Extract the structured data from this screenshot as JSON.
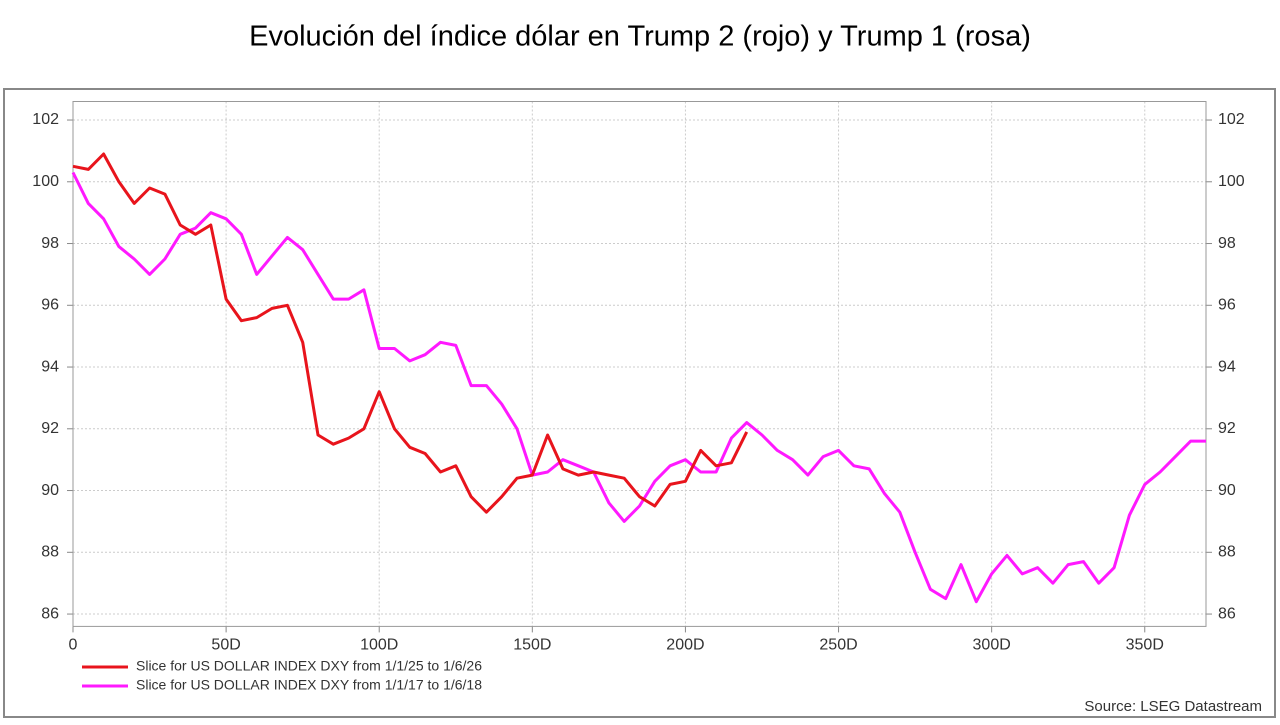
{
  "chart_data": {
    "type": "line",
    "title": "Evolución del índice dólar en Trump 2 (rojo) y Trump 1 (rosa)",
    "source": "Source: LSEG Datastream",
    "x": [
      0,
      5,
      10,
      15,
      20,
      25,
      30,
      35,
      40,
      45,
      50,
      55,
      60,
      65,
      70,
      75,
      80,
      85,
      90,
      95,
      100,
      105,
      110,
      115,
      120,
      125,
      130,
      135,
      140,
      145,
      150,
      155,
      160,
      165,
      170,
      175,
      180,
      185,
      190,
      195,
      200,
      205,
      210,
      215,
      220,
      225,
      230,
      235,
      240,
      245,
      250,
      255,
      260,
      265,
      270,
      275,
      280,
      285,
      290,
      295,
      300,
      305,
      310,
      315,
      320,
      325,
      330,
      335,
      340,
      345,
      350,
      355,
      360,
      365,
      370
    ],
    "series": [
      {
        "name": "Slice for US DOLLAR INDEX DXY from 1/1/25 to 1/6/26",
        "color": "#e8141c",
        "values": [
          100.5,
          100.4,
          100.9,
          100.0,
          99.3,
          99.8,
          99.6,
          98.6,
          98.3,
          98.6,
          96.2,
          95.5,
          95.6,
          95.9,
          96.0,
          94.8,
          91.8,
          91.5,
          91.7,
          92.0,
          93.2,
          92.0,
          91.4,
          91.2,
          90.6,
          90.8,
          89.8,
          89.3,
          89.8,
          90.4,
          90.5,
          91.8,
          90.7,
          90.5,
          90.6,
          90.5,
          90.4,
          89.8,
          89.5,
          90.2,
          90.3,
          91.3,
          90.8,
          90.9,
          91.9,
          null,
          null,
          null,
          null,
          null,
          null,
          null,
          null,
          null,
          null,
          null,
          null,
          null,
          null,
          null,
          null,
          null,
          null,
          null,
          null,
          null,
          null,
          null,
          null,
          null,
          null,
          null,
          null,
          null,
          null
        ]
      },
      {
        "name": "Slice for US DOLLAR INDEX DXY from 1/1/17 to 1/6/18",
        "color": "#ff19ff",
        "values": [
          100.3,
          99.3,
          98.8,
          97.9,
          97.5,
          97.0,
          97.5,
          98.3,
          98.5,
          99.0,
          98.8,
          98.3,
          97.0,
          97.6,
          98.2,
          97.8,
          97.0,
          96.2,
          96.2,
          96.5,
          94.6,
          94.6,
          94.2,
          94.4,
          94.8,
          94.7,
          93.4,
          93.4,
          92.8,
          92.0,
          90.5,
          90.6,
          91.0,
          90.8,
          90.6,
          89.6,
          89.0,
          89.5,
          90.3,
          90.8,
          91.0,
          90.6,
          90.6,
          91.7,
          92.2,
          91.8,
          91.3,
          91.0,
          90.5,
          91.1,
          91.3,
          90.8,
          90.7,
          89.9,
          89.3,
          88.0,
          86.8,
          86.5,
          87.6,
          86.4,
          87.3,
          87.9,
          87.3,
          87.5,
          87.0,
          87.6,
          87.7,
          87.0,
          87.5,
          89.2,
          90.2,
          90.6,
          91.1,
          91.6,
          91.6
        ]
      }
    ],
    "xlim": [
      0,
      370
    ],
    "xticks": [
      0,
      {
        "value": 50,
        "label": "50D"
      },
      {
        "value": 100,
        "label": "100D"
      },
      {
        "value": 150,
        "label": "150D"
      },
      {
        "value": 200,
        "label": "200D"
      },
      {
        "value": 250,
        "label": "250D"
      },
      {
        "value": 300,
        "label": "300D"
      },
      {
        "value": 350,
        "label": "350D"
      }
    ],
    "ylim": [
      85.6,
      102.6
    ],
    "yticks": [
      86,
      88,
      90,
      92,
      94,
      96,
      98,
      100,
      102
    ],
    "y2lim": [
      85.6,
      102.6
    ],
    "y2ticks": [
      86,
      88,
      90,
      92,
      94,
      96,
      98,
      100,
      102
    ],
    "grid": true
  }
}
